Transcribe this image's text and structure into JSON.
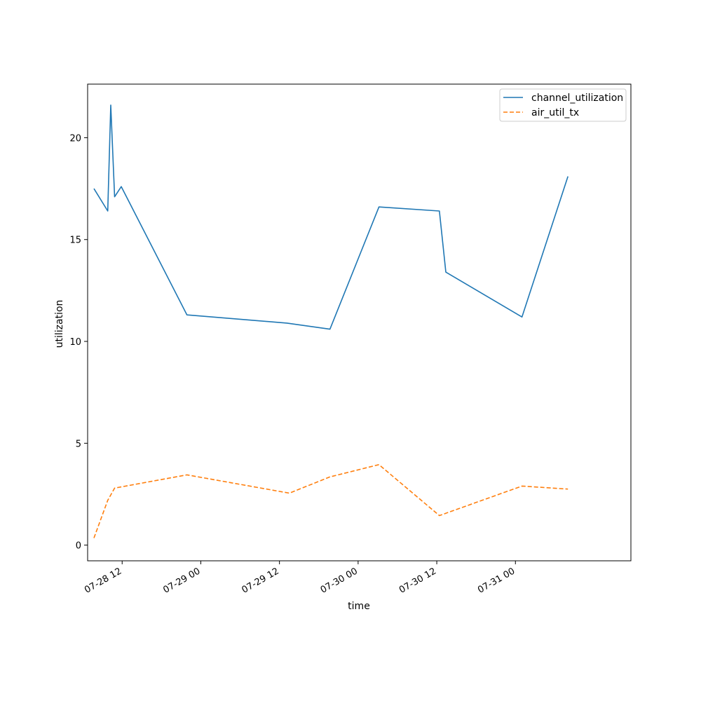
{
  "chart_data": {
    "type": "line",
    "xlabel": "time",
    "ylabel": "utilization",
    "x_type": "datetime",
    "xlim": [
      "2022-07-28T06:44",
      "2022-07-31T17:37"
    ],
    "ylim": [
      -0.77,
      22.63
    ],
    "x_ticks": [
      {
        "value": "2022-07-28T12:00",
        "label": "07-28 12"
      },
      {
        "value": "2022-07-29T00:00",
        "label": "07-29 00"
      },
      {
        "value": "2022-07-29T12:00",
        "label": "07-29 12"
      },
      {
        "value": "2022-07-30T00:00",
        "label": "07-30 00"
      },
      {
        "value": "2022-07-30T12:00",
        "label": "07-30 12"
      },
      {
        "value": "2022-07-31T00:00",
        "label": "07-31 00"
      }
    ],
    "y_ticks": [
      {
        "value": 0,
        "label": "0"
      },
      {
        "value": 5,
        "label": "5"
      },
      {
        "value": 10,
        "label": "10"
      },
      {
        "value": 15,
        "label": "15"
      },
      {
        "value": 20,
        "label": "20"
      }
    ],
    "grid": false,
    "legend_position": "top-right",
    "series": [
      {
        "name": "channel_utilization",
        "color": "#1f77b4",
        "style": "solid",
        "points": [
          {
            "x": "2022-07-28T07:42",
            "y": 17.5
          },
          {
            "x": "2022-07-28T09:48",
            "y": 16.4
          },
          {
            "x": "2022-07-28T10:16",
            "y": 21.6
          },
          {
            "x": "2022-07-28T10:51",
            "y": 17.1
          },
          {
            "x": "2022-07-28T11:52",
            "y": 17.6
          },
          {
            "x": "2022-07-28T21:53",
            "y": 11.3
          },
          {
            "x": "2022-07-29T13:08",
            "y": 10.9
          },
          {
            "x": "2022-07-29T19:42",
            "y": 10.6
          },
          {
            "x": "2022-07-30T03:11",
            "y": 16.6
          },
          {
            "x": "2022-07-30T12:24",
            "y": 16.4
          },
          {
            "x": "2022-07-30T13:23",
            "y": 13.4
          },
          {
            "x": "2022-07-31T01:00",
            "y": 11.2
          },
          {
            "x": "2022-07-31T08:01",
            "y": 18.1
          }
        ]
      },
      {
        "name": "air_util_tx",
        "color": "#ff7f0e",
        "style": "dashed",
        "points": [
          {
            "x": "2022-07-28T07:42",
            "y": 0.35
          },
          {
            "x": "2022-07-28T09:48",
            "y": 2.2
          },
          {
            "x": "2022-07-28T10:51",
            "y": 2.8
          },
          {
            "x": "2022-07-28T21:53",
            "y": 3.45
          },
          {
            "x": "2022-07-29T13:31",
            "y": 2.55
          },
          {
            "x": "2022-07-29T19:42",
            "y": 3.35
          },
          {
            "x": "2022-07-30T03:11",
            "y": 3.95
          },
          {
            "x": "2022-07-30T12:24",
            "y": 1.45
          },
          {
            "x": "2022-07-31T01:00",
            "y": 2.9
          },
          {
            "x": "2022-07-31T08:01",
            "y": 2.75
          }
        ]
      }
    ]
  }
}
